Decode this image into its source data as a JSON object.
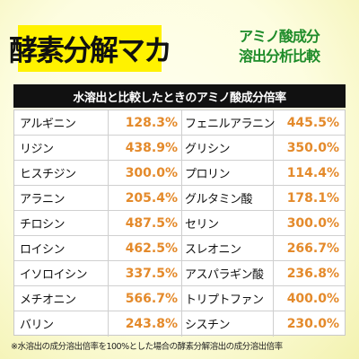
{
  "title": "酵素分解マカ",
  "subtitle_line1": "アミノ酸成分",
  "subtitle_line2": "溶出分析比較",
  "table_header": "水溶出と比較したときのアミノ酸成分倍率",
  "rows": [
    {
      "left_name": "アルギニン",
      "left_value": "128.3%",
      "right_name": "フェニルアラニン",
      "right_value": "445.5%"
    },
    {
      "left_name": "リジン",
      "left_value": "438.9%",
      "right_name": "グリシン",
      "right_value": "350.0%"
    },
    {
      "left_name": "ヒスチジン",
      "left_value": "300.0%",
      "right_name": "プロリン",
      "right_value": "114.4%"
    },
    {
      "left_name": "アラニン",
      "left_value": "205.4%",
      "right_name": "グルタミン酸",
      "right_value": "178.1%"
    },
    {
      "left_name": "チロシン",
      "left_value": "487.5%",
      "right_name": "セリン",
      "right_value": "300.0%"
    },
    {
      "left_name": "ロイシン",
      "left_value": "462.5%",
      "right_name": "スレオニン",
      "right_value": "266.7%"
    },
    {
      "left_name": "イソロイシン",
      "left_value": "337.5%",
      "right_name": "アスパラギン酸",
      "right_value": "236.8%"
    },
    {
      "left_name": "メチオニン",
      "left_value": "566.7%",
      "right_name": "トリプトファン",
      "right_value": "400.0%"
    },
    {
      "left_name": "バリン",
      "left_value": "243.8%",
      "right_name": "シスチン",
      "right_value": "230.0%"
    }
  ],
  "footnote": "※水溶出の成分溶出倍率を100%とした場合の酵素分解溶出の成分溶出倍率",
  "colors": {
    "title_bg": "#fff200",
    "subtitle": "#1e8c2a",
    "value": "#e48a2b",
    "header_bg": "#111111"
  }
}
